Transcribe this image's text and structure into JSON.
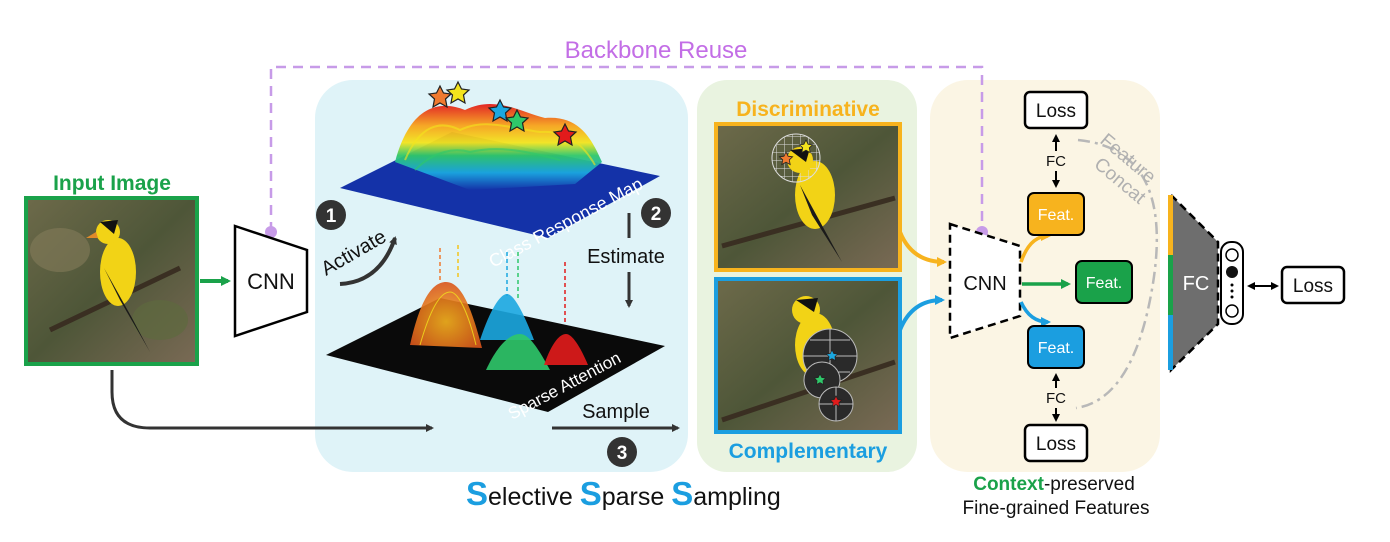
{
  "title": "Backbone Reuse",
  "input": {
    "label": "Input Image"
  },
  "cnn_left": {
    "label": "CNN"
  },
  "steps": {
    "activate": {
      "number": "1",
      "label": "Activate"
    },
    "estimate": {
      "number": "2",
      "label": "Estimate"
    },
    "sample": {
      "number": "3",
      "label": "Sample"
    }
  },
  "maps": {
    "class_response": "Class Response Map",
    "sparse_attention": "Sparse Attention"
  },
  "samples": {
    "discriminative": "Discriminative",
    "complementary": "Complementary"
  },
  "sss": {
    "s1": "S",
    "r1": "elective ",
    "s2": "S",
    "r2": "parse ",
    "s3": "S",
    "r3": "ampling"
  },
  "right": {
    "cnn": "CNN",
    "feat_top": "Feat.",
    "feat_mid": "Feat.",
    "feat_bottom": "Feat.",
    "loss_top": "Loss",
    "loss_bottom": "Loss",
    "loss_right": "Loss",
    "fc_top": "FC",
    "fc_bottom": "FC",
    "fc_big": "FC",
    "concat_1": "Feature",
    "concat_2": "Concat",
    "caption_highlight": "Context",
    "caption_rest": "-preserved",
    "caption_line2": "Fine-grained Features"
  },
  "colors": {
    "green": "#1aa24a",
    "orange": "#f7b31e",
    "blue": "#1b9ee0",
    "purple": "#c79be8",
    "panel_blue": "#dff3f8",
    "panel_green": "#e9f3e0",
    "panel_cream": "#fbf5e4",
    "dark": "#333333"
  }
}
